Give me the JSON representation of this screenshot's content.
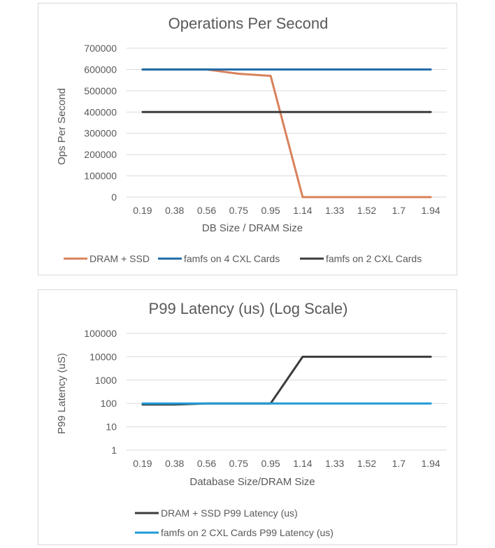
{
  "chart_data": [
    {
      "type": "line",
      "title": "Operations Per Second",
      "xlabel": "DB Size / DRAM Size",
      "ylabel": "Ops Per Second",
      "categories": [
        "0.19",
        "0.38",
        "0.56",
        "0.75",
        "0.95",
        "1.14",
        "1.33",
        "1.52",
        "1.7",
        "1.94"
      ],
      "ylim": [
        0,
        700000
      ],
      "yticks": [
        "0",
        "100000",
        "200000",
        "300000",
        "400000",
        "500000",
        "600000",
        "700000"
      ],
      "yscale": "linear",
      "grid": true,
      "legend_position": "bottom",
      "series": [
        {
          "name": "DRAM + SSD",
          "color": "#d9815a",
          "values": [
            600000,
            600000,
            600000,
            580000,
            570000,
            0,
            0,
            0,
            0,
            0
          ]
        },
        {
          "name": "famfs on 4 CXL Cards",
          "color": "#1f6aa6",
          "values": [
            600000,
            600000,
            600000,
            600000,
            600000,
            600000,
            600000,
            600000,
            600000,
            600000
          ]
        },
        {
          "name": "famfs on 2 CXL Cards",
          "color": "#3b3b3b",
          "values": [
            400000,
            400000,
            400000,
            400000,
            400000,
            400000,
            400000,
            400000,
            400000,
            400000
          ]
        }
      ]
    },
    {
      "type": "line",
      "title": "P99 Latency (us) (Log Scale)",
      "xlabel": "Database Size/DRAM Size",
      "ylabel": "P99 Latency (uS)",
      "categories": [
        "0.19",
        "0.38",
        "0.56",
        "0.75",
        "0.95",
        "1.14",
        "1.33",
        "1.52",
        "1.7",
        "1.94"
      ],
      "ylim": [
        1,
        100000
      ],
      "yticks": [
        "1",
        "10",
        "100",
        "1000",
        "10000",
        "100000"
      ],
      "yscale": "log",
      "grid": true,
      "legend_position": "bottom",
      "series": [
        {
          "name": "DRAM + SSD P99 Latency (us)",
          "color": "#3b3b3b",
          "values": [
            90,
            90,
            100,
            100,
            100,
            10000,
            10000,
            10000,
            10000,
            10000
          ]
        },
        {
          "name": "famfs on 2 CXL Cards P99 Latency (us)",
          "color": "#1f9bd7",
          "values": [
            100,
            100,
            100,
            100,
            100,
            100,
            100,
            100,
            100,
            100
          ]
        }
      ]
    }
  ]
}
